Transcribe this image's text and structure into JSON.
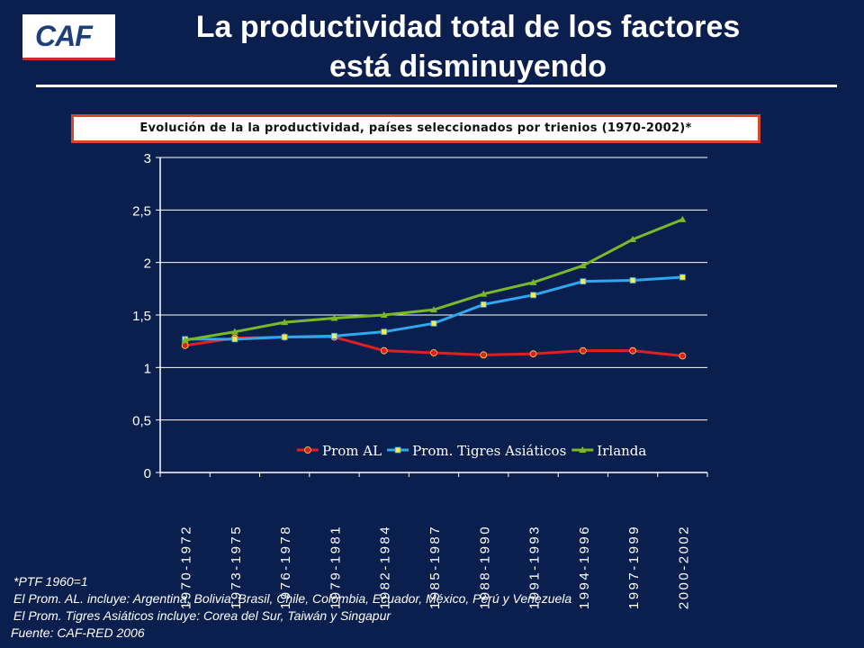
{
  "logo": {
    "text": "CAF"
  },
  "header": {
    "title_line1": "La productividad total de los factores",
    "title_line2": "está disminuyendo"
  },
  "colors": {
    "background": "#0b1f4e",
    "prom_al": "#e02020",
    "tigres": "#2ea8f0",
    "irlanda": "#7ab82a",
    "box_border": "#d44a2a"
  },
  "chart_data": {
    "type": "line",
    "title": "Evolución de la la productividad, países seleccionados por trienios (1970-2002)*",
    "categories": [
      "1970-1972",
      "1973-1975",
      "1976-1978",
      "1979-1981",
      "1982-1984",
      "1985-1987",
      "1988-1990",
      "1991-1993",
      "1994-1996",
      "1997-1999",
      "2000-2002"
    ],
    "ylim": [
      0,
      3
    ],
    "yticks": [
      "0",
      "0,5",
      "1",
      "1,5",
      "2",
      "2,5",
      "3"
    ],
    "grid": true,
    "legend": "bottom-inside",
    "series": [
      {
        "name": "Prom AL",
        "color": "#e02020",
        "marker": "circle",
        "values": [
          1.21,
          1.28,
          1.29,
          1.29,
          1.16,
          1.14,
          1.12,
          1.13,
          1.16,
          1.16,
          1.11
        ]
      },
      {
        "name": "Prom. Tigres Asiáticos",
        "color": "#2ea8f0",
        "marker": "square",
        "values": [
          1.27,
          1.27,
          1.29,
          1.3,
          1.34,
          1.42,
          1.6,
          1.69,
          1.82,
          1.83,
          1.86
        ]
      },
      {
        "name": "Irlanda",
        "color": "#7ab82a",
        "marker": "triangle",
        "values": [
          1.26,
          1.34,
          1.43,
          1.47,
          1.5,
          1.55,
          1.7,
          1.81,
          1.97,
          2.22,
          2.41
        ]
      }
    ]
  },
  "notes": {
    "line1": "*PTF 1960=1",
    "line2": "El Prom. AL. incluye: Argentina, Bolivia, Brasil, Chile, Colombia, Ecuador, México, Perú y Venezuela",
    "line3": "El Prom. Tigres Asiáticos incluye: Corea del Sur, Taiwán y Singapur"
  },
  "source": "Fuente: CAF-RED  2006"
}
